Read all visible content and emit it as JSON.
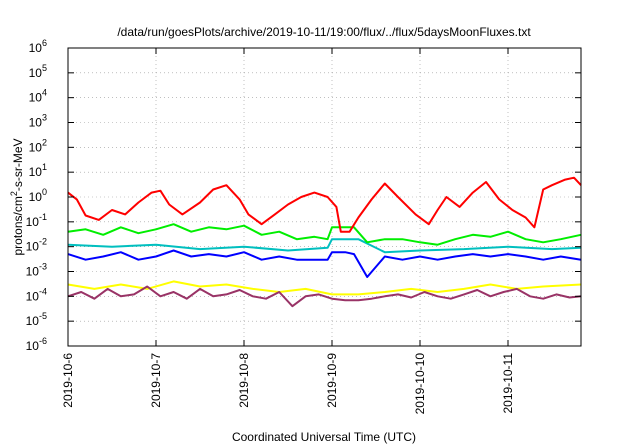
{
  "chart_data": {
    "type": "line",
    "title": "/data/run/goesPlots/archive/2019-10-11/19:00/flux/../flux/5daysMoonFluxes.txt",
    "xlabel": "Coordinated Universal Time (UTC)",
    "ylabel": "protons/cm2-s-sr-MeV",
    "ylabel_parts": {
      "base": "protons/cm",
      "sup": "2",
      "rest": "-s-sr-MeV"
    },
    "y_scale": "log",
    "ylim": [
      1e-06,
      1000000.0
    ],
    "y_ticks": [
      {
        "v": -6,
        "base": "10",
        "sup": "-6"
      },
      {
        "v": -5,
        "base": "10",
        "sup": "-5"
      },
      {
        "v": -4,
        "base": "10",
        "sup": "-4"
      },
      {
        "v": -3,
        "base": "10",
        "sup": "-3"
      },
      {
        "v": -2,
        "base": "10",
        "sup": "-2"
      },
      {
        "v": -1,
        "base": "10",
        "sup": "-1"
      },
      {
        "v": 0,
        "base": "10",
        "sup": "0"
      },
      {
        "v": 1,
        "base": "10",
        "sup": "1"
      },
      {
        "v": 2,
        "base": "10",
        "sup": "2"
      },
      {
        "v": 3,
        "base": "10",
        "sup": "3"
      },
      {
        "v": 4,
        "base": "10",
        "sup": "4"
      },
      {
        "v": 5,
        "base": "10",
        "sup": "5"
      },
      {
        "v": 6,
        "base": "10",
        "sup": "6"
      }
    ],
    "x_ticks": [
      "2019-10-6",
      "2019-10-7",
      "2019-10-8",
      "2019-10-9",
      "2019-10-10",
      "2019-10-11"
    ],
    "xlim_days": [
      0,
      5.83
    ],
    "grid": true,
    "legend": "none",
    "series": [
      {
        "color": "#ff0000",
        "x": [
          0,
          0.1,
          0.2,
          0.35,
          0.5,
          0.65,
          0.8,
          0.95,
          1.05,
          1.15,
          1.3,
          1.5,
          1.65,
          1.8,
          1.95,
          2.05,
          2.2,
          2.35,
          2.5,
          2.65,
          2.8,
          2.95,
          3.05,
          3.1,
          3.2,
          3.3,
          3.45,
          3.6,
          3.75,
          3.95,
          4.1,
          4.2,
          4.3,
          4.45,
          4.6,
          4.75,
          4.9,
          5.05,
          5.2,
          5.3,
          5.4,
          5.5,
          5.65,
          5.75,
          5.83
        ],
        "y": [
          1.5,
          0.8,
          0.18,
          0.12,
          0.3,
          0.2,
          0.6,
          1.5,
          1.8,
          0.5,
          0.2,
          0.6,
          2.0,
          3.0,
          0.8,
          0.2,
          0.08,
          0.2,
          0.5,
          1.0,
          1.5,
          1.0,
          0.4,
          0.04,
          0.04,
          0.15,
          0.8,
          3.5,
          1.0,
          0.2,
          0.08,
          0.3,
          1.0,
          0.4,
          1.5,
          4.0,
          0.8,
          0.3,
          0.15,
          0.06,
          2.0,
          3.0,
          5.0,
          6.0,
          3.0
        ]
      },
      {
        "color": "#00ee00",
        "x": [
          0,
          0.2,
          0.4,
          0.6,
          0.8,
          1.0,
          1.2,
          1.4,
          1.6,
          1.8,
          2.0,
          2.2,
          2.4,
          2.6,
          2.8,
          2.95,
          3.0,
          3.15,
          3.25,
          3.4,
          3.6,
          3.8,
          4.0,
          4.2,
          4.4,
          4.6,
          4.8,
          5.0,
          5.2,
          5.4,
          5.6,
          5.83
        ],
        "y": [
          0.04,
          0.05,
          0.03,
          0.06,
          0.035,
          0.05,
          0.08,
          0.04,
          0.06,
          0.05,
          0.07,
          0.03,
          0.04,
          0.02,
          0.025,
          0.02,
          0.06,
          0.06,
          0.06,
          0.015,
          0.02,
          0.02,
          0.015,
          0.012,
          0.02,
          0.03,
          0.025,
          0.04,
          0.02,
          0.015,
          0.02,
          0.03
        ]
      },
      {
        "color": "#0000ff",
        "x": [
          0,
          0.2,
          0.4,
          0.6,
          0.8,
          1.0,
          1.2,
          1.4,
          1.6,
          1.8,
          2.0,
          2.2,
          2.4,
          2.6,
          2.8,
          2.95,
          3.0,
          3.15,
          3.25,
          3.4,
          3.6,
          3.8,
          4.0,
          4.2,
          4.4,
          4.6,
          4.8,
          5.0,
          5.2,
          5.4,
          5.6,
          5.83
        ],
        "y": [
          0.005,
          0.003,
          0.004,
          0.006,
          0.003,
          0.004,
          0.007,
          0.004,
          0.005,
          0.004,
          0.006,
          0.003,
          0.004,
          0.003,
          0.003,
          0.003,
          0.006,
          0.006,
          0.005,
          0.0006,
          0.004,
          0.003,
          0.004,
          0.003,
          0.004,
          0.005,
          0.004,
          0.005,
          0.004,
          0.003,
          0.004,
          0.003
        ]
      },
      {
        "color": "#00bfbf",
        "x": [
          0,
          0.5,
          1.0,
          1.5,
          2.0,
          2.5,
          2.95,
          3.0,
          3.3,
          3.6,
          4.0,
          4.5,
          5.0,
          5.5,
          5.83
        ],
        "y": [
          0.012,
          0.01,
          0.012,
          0.008,
          0.01,
          0.007,
          0.009,
          0.02,
          0.02,
          0.006,
          0.007,
          0.008,
          0.01,
          0.008,
          0.009
        ]
      },
      {
        "color": "#ffff00",
        "x": [
          0,
          0.3,
          0.6,
          0.9,
          1.2,
          1.5,
          1.8,
          2.1,
          2.4,
          2.7,
          3.0,
          3.3,
          3.6,
          3.9,
          4.2,
          4.5,
          4.8,
          5.1,
          5.4,
          5.83
        ],
        "y": [
          0.0003,
          0.0002,
          0.0003,
          0.0002,
          0.0004,
          0.00025,
          0.0003,
          0.0002,
          0.00015,
          0.0002,
          0.00012,
          0.00012,
          0.00015,
          0.0002,
          0.00015,
          0.0002,
          0.0003,
          0.0002,
          0.00025,
          0.0003
        ]
      },
      {
        "color": "#993366",
        "x": [
          0,
          0.15,
          0.3,
          0.45,
          0.6,
          0.75,
          0.9,
          1.05,
          1.2,
          1.35,
          1.5,
          1.65,
          1.8,
          1.95,
          2.1,
          2.25,
          2.4,
          2.55,
          2.7,
          2.85,
          3.0,
          3.15,
          3.3,
          3.45,
          3.6,
          3.75,
          3.9,
          4.05,
          4.2,
          4.35,
          4.5,
          4.65,
          4.8,
          4.95,
          5.1,
          5.25,
          5.4,
          5.55,
          5.7,
          5.83
        ],
        "y": [
          0.0001,
          0.00015,
          8e-05,
          0.0002,
          0.0001,
          0.00012,
          0.00025,
          0.0001,
          0.00015,
          8e-05,
          0.0002,
          0.0001,
          0.00012,
          0.00018,
          0.0001,
          8e-05,
          0.00015,
          4e-05,
          0.0001,
          0.00012,
          8e-05,
          7e-05,
          7e-05,
          8e-05,
          0.0001,
          0.00012,
          9e-05,
          0.00015,
          0.0001,
          8e-05,
          0.00012,
          0.00018,
          0.0001,
          0.00015,
          0.0002,
          0.0001,
          8e-05,
          0.00012,
          9e-05,
          0.0001
        ]
      }
    ]
  }
}
